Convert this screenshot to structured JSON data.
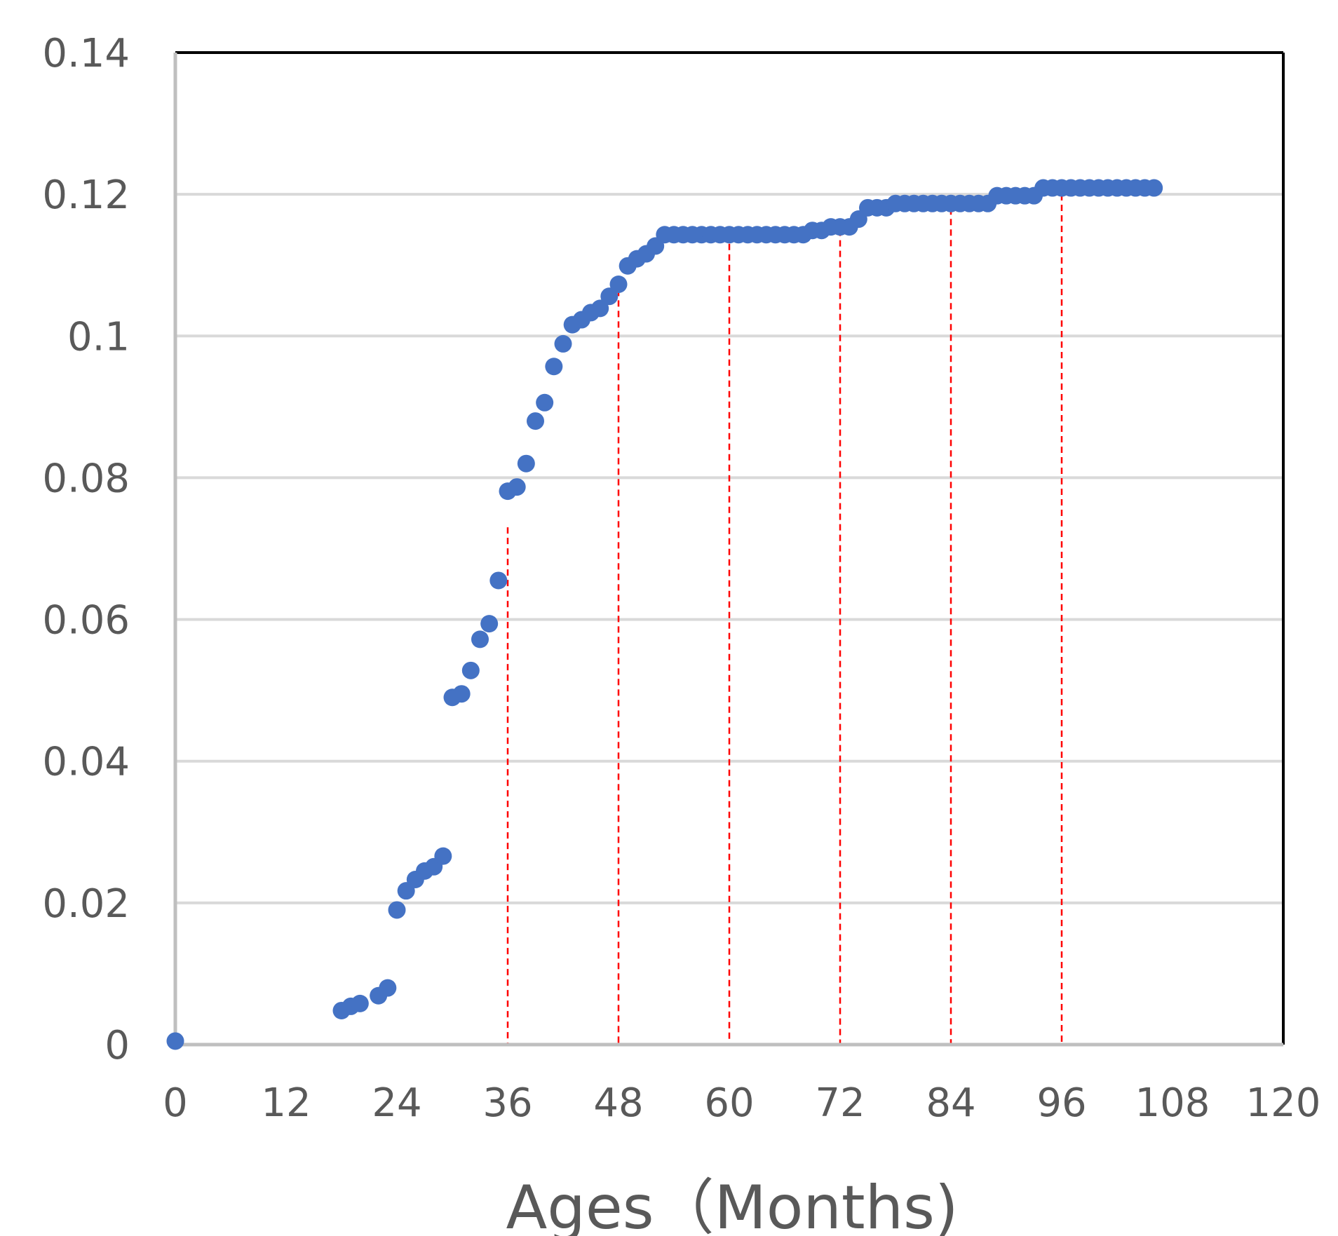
{
  "chart_data": {
    "type": "scatter",
    "title": "",
    "xlabel": "Ages（Months)",
    "ylabel": "",
    "xlim": [
      0,
      120
    ],
    "ylim": [
      0,
      0.14
    ],
    "x_ticks": [
      "0",
      "12",
      "24",
      "36",
      "48",
      "60",
      "72",
      "84",
      "96",
      "108",
      "120"
    ],
    "y_ticks": [
      "0",
      "0.02",
      "0.04",
      "0.06",
      "0.08",
      "0.1",
      "0.12",
      "0.14"
    ],
    "grid": "horizontal",
    "legend": "none",
    "colors": {
      "marker": "#4472C4",
      "reference_lines": "#FF0000",
      "gridlines": "#D9D9D9",
      "frame": "#000000",
      "ticks_text": "#595959"
    },
    "reference_lines": [
      {
        "x": 36,
        "y_top": 0.073
      },
      {
        "x": 48,
        "y_top": 0.108
      },
      {
        "x": 60,
        "y_top": 0.1145
      },
      {
        "x": 72,
        "y_top": 0.115
      },
      {
        "x": 84,
        "y_top": 0.1195
      },
      {
        "x": 96,
        "y_top": 0.1215
      }
    ],
    "points": [
      [
        0,
        0.0005
      ],
      [
        18,
        0.0048
      ],
      [
        19,
        0.0054
      ],
      [
        20,
        0.0058
      ],
      [
        22,
        0.0069
      ],
      [
        23,
        0.008
      ],
      [
        24,
        0.019
      ],
      [
        25,
        0.0217
      ],
      [
        26,
        0.0233
      ],
      [
        27,
        0.0245
      ],
      [
        28,
        0.0251
      ],
      [
        29,
        0.0266
      ],
      [
        30,
        0.049
      ],
      [
        31,
        0.0495
      ],
      [
        32,
        0.0528
      ],
      [
        33,
        0.0572
      ],
      [
        34,
        0.0594
      ],
      [
        35,
        0.0655
      ],
      [
        36,
        0.0781
      ],
      [
        37,
        0.0787
      ],
      [
        38,
        0.082
      ],
      [
        39,
        0.088
      ],
      [
        40,
        0.0906
      ],
      [
        41,
        0.0957
      ],
      [
        42,
        0.0989
      ],
      [
        43,
        0.1016
      ],
      [
        44,
        0.1023
      ],
      [
        45,
        0.1033
      ],
      [
        46,
        0.1039
      ],
      [
        47,
        0.1056
      ],
      [
        48,
        0.1073
      ],
      [
        49,
        0.1099
      ],
      [
        50,
        0.1109
      ],
      [
        51,
        0.1116
      ],
      [
        52,
        0.1127
      ],
      [
        53,
        0.1143
      ],
      [
        54,
        0.1143
      ],
      [
        55,
        0.1143
      ],
      [
        56,
        0.1143
      ],
      [
        57,
        0.1143
      ],
      [
        58,
        0.1143
      ],
      [
        59,
        0.1143
      ],
      [
        60,
        0.1143
      ],
      [
        61,
        0.1143
      ],
      [
        62,
        0.1143
      ],
      [
        63,
        0.1143
      ],
      [
        64,
        0.1143
      ],
      [
        65,
        0.1143
      ],
      [
        66,
        0.1143
      ],
      [
        67,
        0.1143
      ],
      [
        68,
        0.1143
      ],
      [
        69,
        0.1149
      ],
      [
        70,
        0.1149
      ],
      [
        71,
        0.1154
      ],
      [
        72,
        0.1154
      ],
      [
        73,
        0.1154
      ],
      [
        74,
        0.1165
      ],
      [
        75,
        0.1181
      ],
      [
        76,
        0.1181
      ],
      [
        77,
        0.1181
      ],
      [
        78,
        0.1187
      ],
      [
        79,
        0.1187
      ],
      [
        80,
        0.1187
      ],
      [
        81,
        0.1187
      ],
      [
        82,
        0.1187
      ],
      [
        83,
        0.1187
      ],
      [
        84,
        0.1187
      ],
      [
        85,
        0.1187
      ],
      [
        86,
        0.1187
      ],
      [
        87,
        0.1187
      ],
      [
        88,
        0.1187
      ],
      [
        89,
        0.1198
      ],
      [
        90,
        0.1198
      ],
      [
        91,
        0.1198
      ],
      [
        92,
        0.1198
      ],
      [
        93,
        0.1198
      ],
      [
        94,
        0.1209
      ],
      [
        95,
        0.1209
      ],
      [
        96,
        0.1209
      ],
      [
        97,
        0.1209
      ],
      [
        98,
        0.1209
      ],
      [
        99,
        0.1209
      ],
      [
        100,
        0.1209
      ],
      [
        101,
        0.1209
      ],
      [
        102,
        0.1209
      ],
      [
        103,
        0.1209
      ],
      [
        104,
        0.1209
      ],
      [
        105,
        0.1209
      ],
      [
        106,
        0.1209
      ]
    ]
  }
}
